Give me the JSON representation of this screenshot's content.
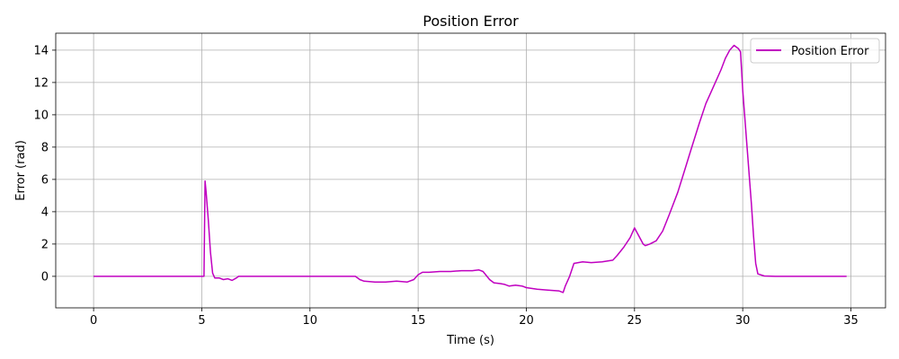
{
  "chart_data": {
    "type": "line",
    "title": "Position Error",
    "xlabel": "Time (s)",
    "ylabel": "Error (rad)",
    "xlim": [
      -1.75,
      36.6
    ],
    "ylim": [
      -1.95,
      15.05
    ],
    "xticks": [
      0,
      5,
      10,
      15,
      20,
      25,
      30,
      35
    ],
    "yticks": [
      0,
      2,
      4,
      6,
      8,
      10,
      12,
      14
    ],
    "grid": true,
    "legend_position": "top-right",
    "colors": {
      "series": "#c000c0",
      "grid": "#b0b0b0",
      "frame": "#000000"
    },
    "series": [
      {
        "name": "Position Error",
        "x": [
          0,
          5.05,
          5.1,
          5.15,
          5.2,
          5.3,
          5.4,
          5.5,
          5.6,
          5.8,
          6.0,
          6.2,
          6.4,
          6.6,
          6.7,
          7.0,
          10.0,
          12.0,
          12.1,
          12.3,
          12.5,
          13.0,
          13.5,
          14.0,
          14.5,
          14.8,
          15.0,
          15.2,
          15.5,
          16.0,
          16.5,
          17.0,
          17.5,
          17.8,
          18.0,
          18.3,
          18.5,
          18.8,
          19.0,
          19.2,
          19.5,
          19.8,
          20.0,
          20.5,
          21.0,
          21.5,
          21.7,
          21.8,
          22.0,
          22.2,
          22.4,
          22.6,
          23.0,
          23.5,
          24.0,
          24.2,
          24.5,
          24.8,
          25.0,
          25.2,
          25.4,
          25.5,
          25.7,
          26.0,
          26.3,
          26.6,
          27.0,
          27.3,
          27.6,
          28.0,
          28.3,
          28.6,
          29.0,
          29.2,
          29.4,
          29.6,
          29.8,
          29.9,
          30.0,
          30.2,
          30.4,
          30.5,
          30.6,
          30.7,
          31.0,
          31.5,
          32.0,
          33.0,
          34.0,
          34.8
        ],
        "y": [
          0,
          0,
          0,
          5.9,
          5.2,
          3.5,
          1.5,
          0.2,
          -0.1,
          -0.1,
          -0.2,
          -0.15,
          -0.25,
          -0.1,
          0,
          0,
          0,
          0,
          0,
          -0.2,
          -0.3,
          -0.35,
          -0.35,
          -0.3,
          -0.35,
          -0.2,
          0.1,
          0.25,
          0.25,
          0.3,
          0.3,
          0.35,
          0.35,
          0.4,
          0.3,
          -0.2,
          -0.4,
          -0.45,
          -0.5,
          -0.6,
          -0.55,
          -0.6,
          -0.7,
          -0.8,
          -0.85,
          -0.9,
          -1.0,
          -0.6,
          0.0,
          0.8,
          0.85,
          0.9,
          0.85,
          0.9,
          1.0,
          1.3,
          1.8,
          2.4,
          3.0,
          2.5,
          2.0,
          1.9,
          2.0,
          2.2,
          2.8,
          3.8,
          5.2,
          6.5,
          7.8,
          9.5,
          10.7,
          11.6,
          12.8,
          13.5,
          14.0,
          14.3,
          14.1,
          13.9,
          11.5,
          8.0,
          4.5,
          2.5,
          0.8,
          0.15,
          0.02,
          0,
          0,
          0,
          0,
          0
        ]
      }
    ]
  }
}
